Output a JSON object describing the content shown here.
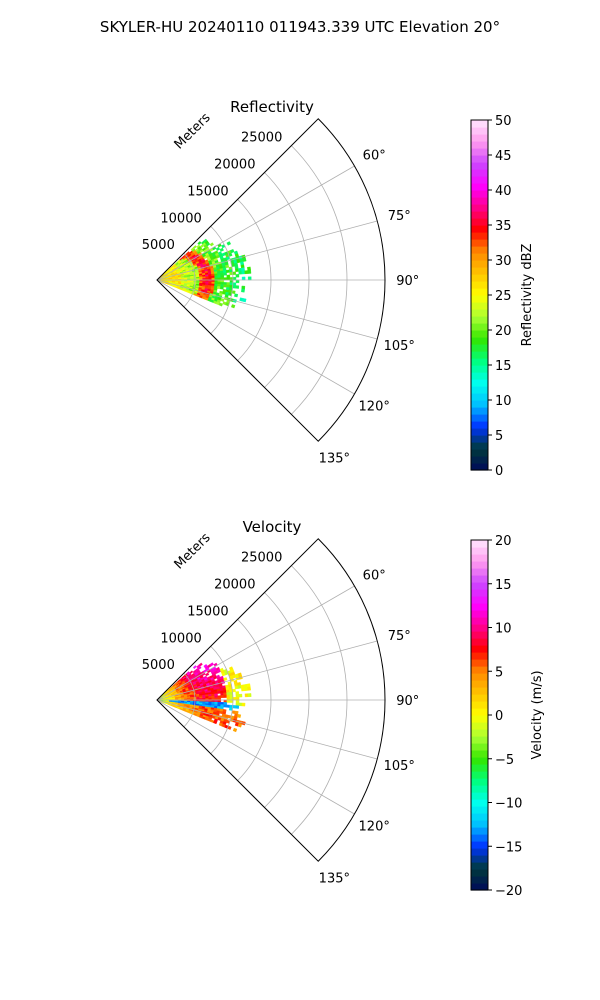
{
  "suptitle": "SKYLER-HU  20240110  011943.339 UTC Elevation 20°",
  "chart_data": [
    {
      "type": "heatmap",
      "projection": "polar-sector",
      "title": "Reflectivity",
      "range_label": "Meters",
      "range_ticks": [
        5000,
        10000,
        15000,
        20000,
        25000
      ],
      "range_limit": [
        0,
        30000
      ],
      "angle_ticks": [
        "60°",
        "75°",
        "90°",
        "105°",
        "120°",
        "135°"
      ],
      "angle_tick_values": [
        60,
        75,
        90,
        105,
        120,
        135
      ],
      "angle_limit": [
        45,
        135
      ],
      "grid": true,
      "colorbar": {
        "label": "Reflectivity dBZ",
        "min": 0,
        "max": 50,
        "ticks": [
          "0",
          "5",
          "10",
          "15",
          "20",
          "25",
          "30",
          "35",
          "40",
          "45",
          "50"
        ],
        "stops": [
          "#000a5a",
          "#003b3b",
          "#0033ff",
          "#00bfff",
          "#00ffee",
          "#00ff7f",
          "#33e600",
          "#aaff33",
          "#ffff00",
          "#ffc400",
          "#ff8800",
          "#ff0000",
          "#ff0088",
          "#ff00ff",
          "#cc44ff",
          "#ff99ee",
          "#ffe8ff"
        ]
      },
      "echo": {
        "angle_range": [
          48,
          112
        ],
        "range_extent": [
          0,
          12000
        ],
        "rain_band_range": 6500,
        "rain_band_value": 35,
        "near_range_value": 26,
        "far_range_value": 16
      }
    },
    {
      "type": "heatmap",
      "projection": "polar-sector",
      "title": "Velocity",
      "range_label": "Meters",
      "range_ticks": [
        5000,
        10000,
        15000,
        20000,
        25000
      ],
      "range_limit": [
        0,
        30000
      ],
      "angle_ticks": [
        "60°",
        "75°",
        "90°",
        "105°",
        "120°",
        "135°"
      ],
      "angle_tick_values": [
        60,
        75,
        90,
        105,
        120,
        135
      ],
      "angle_limit": [
        45,
        135
      ],
      "grid": true,
      "colorbar": {
        "label": "Velocity (m/s)",
        "min": -20,
        "max": 20,
        "ticks": [
          "−20",
          "−15",
          "−10",
          "−5",
          "0",
          "5",
          "10",
          "15",
          "20"
        ],
        "stops": [
          "#000a5a",
          "#003b3b",
          "#0033ff",
          "#00bfff",
          "#00ffee",
          "#00ff7f",
          "#33e600",
          "#aaff33",
          "#ffff00",
          "#ffc400",
          "#ff8800",
          "#ff0000",
          "#ff0088",
          "#ff00ff",
          "#cc44ff",
          "#ff99ee",
          "#ffe8ff"
        ]
      },
      "echo": {
        "angle_range": [
          48,
          112
        ],
        "range_extent": [
          0,
          12000
        ],
        "north_value": 12,
        "south_value": 6,
        "shear_angle": 95,
        "shear_value": -13,
        "near_range_value": -3
      }
    }
  ]
}
